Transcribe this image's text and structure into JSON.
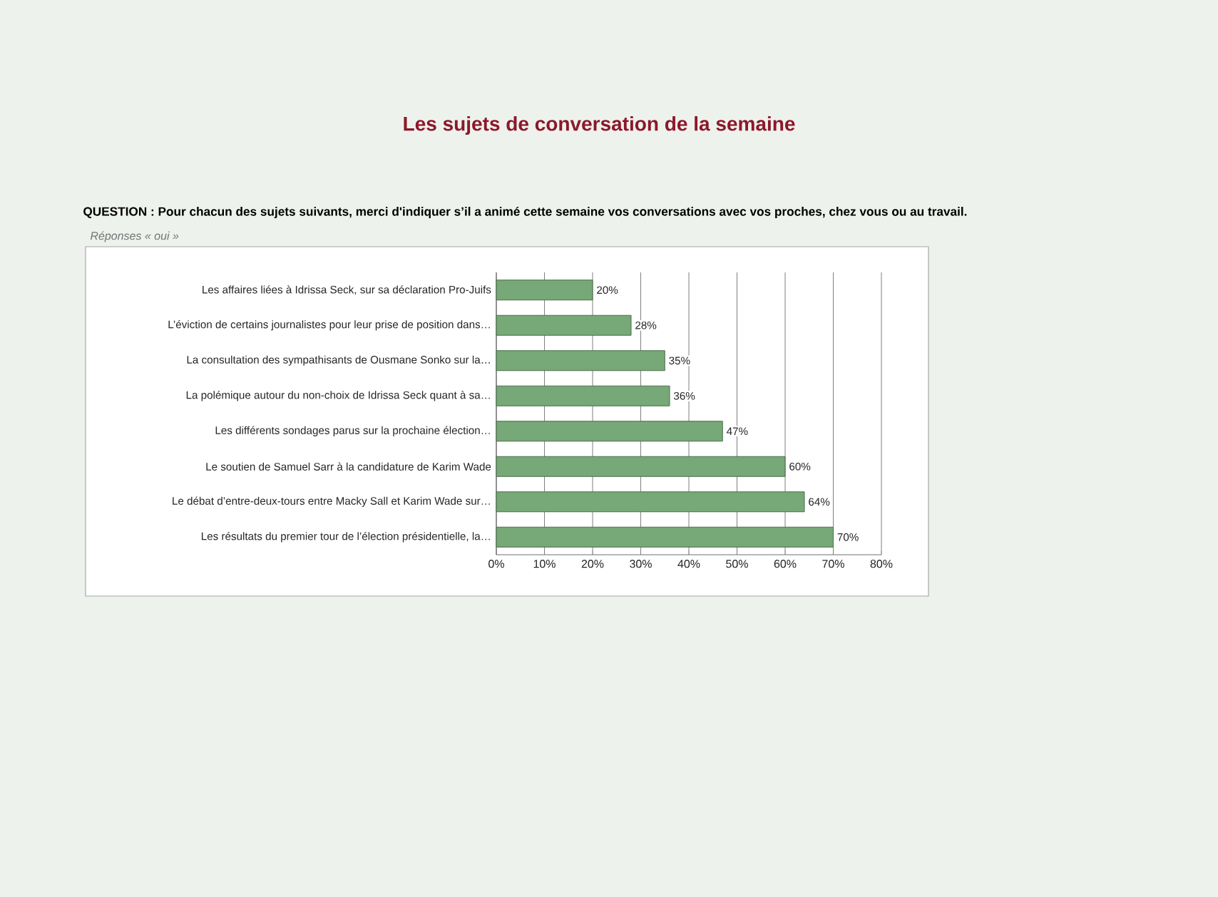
{
  "chart_data": {
    "type": "bar",
    "orientation": "horizontal",
    "title": "Les sujets de conversation de la semaine",
    "subtitle": "QUESTION : Pour chacun des sujets suivants, merci d'indiquer s’il a animé cette semaine vos conversations avec vos proches, chez vous ou au travail.",
    "annotations": [
      "Réponses « oui »"
    ],
    "categories": [
      "Les affaires liées à Idrissa Seck, sur sa déclaration Pro-Juifs",
      "L’éviction de certains journalistes pour leur prise de position dans…",
      "La consultation des sympathisants de Ousmane Sonko sur la…",
      "La polémique autour du non-choix de Idrissa Seck quant à sa…",
      "Les différents sondages parus sur la prochaine élection…",
      "Le soutien de Samuel Sarr à la candidature de Karim Wade",
      "Le débat d’entre-deux-tours entre Macky Sall et Karim Wade sur…",
      "Les résultats du premier tour de l’élection présidentielle, la…"
    ],
    "values": [
      20,
      28,
      35,
      36,
      47,
      60,
      64,
      70
    ],
    "value_labels": [
      "20%",
      "28%",
      "35%",
      "36%",
      "47%",
      "60%",
      "64%",
      "70%"
    ],
    "color": "#77a877",
    "xlim": [
      0,
      80
    ],
    "xticks": [
      {
        "value": 0,
        "label": "0%"
      },
      {
        "value": 10,
        "label": "10%"
      },
      {
        "value": 20,
        "label": "20%"
      },
      {
        "value": 30,
        "label": "30%"
      },
      {
        "value": 40,
        "label": "40%"
      },
      {
        "value": 50,
        "label": "50%"
      },
      {
        "value": 60,
        "label": "60%"
      },
      {
        "value": 70,
        "label": "70%"
      },
      {
        "value": 80,
        "label": "80%"
      }
    ],
    "grid": "x"
  }
}
